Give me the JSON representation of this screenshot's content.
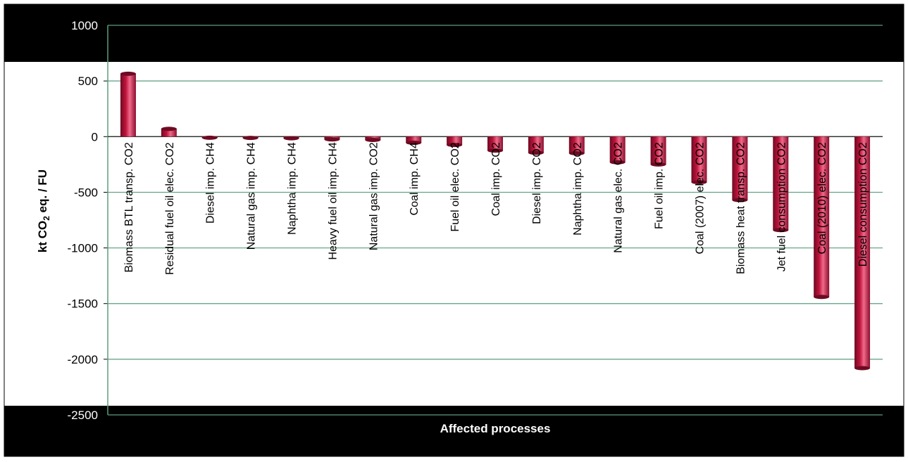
{
  "chart_data": {
    "type": "bar",
    "title": "",
    "xlabel": "Affected processes",
    "ylabel_main": "kt CO",
    "ylabel_sub": "2",
    "ylabel_rest": " eq. / FU",
    "ylim": [
      -2500,
      1000
    ],
    "yticks": [
      1000,
      500,
      0,
      -500,
      -1000,
      -1500,
      -2000,
      -2500
    ],
    "grid": true,
    "legend": "none",
    "colors": {
      "bar": "#c0143c",
      "bar_dark": "#6e0a22",
      "bar_light": "#f06a8a",
      "grid": "#5a9e7e",
      "band": "#000000"
    },
    "categories": [
      "Biomass BTL transp. CO2",
      "Residual fuel oil elec. CO2",
      "Diesel imp. CH4",
      "Natural gas imp. CH4",
      "Naphtha imp. CH4",
      "Heavy fuel oil imp. CH4",
      "Natural gas imp. CO2",
      "Coal imp. CH4",
      "Fuel oil elec. CO2",
      "Coal imp. CO2",
      "Diesel imp. CO2",
      "Naphtha imp. CO2",
      "Natural gas elec. CO2",
      "Fuel oil imp. CO2",
      "Coal (2007) elec. CO2",
      "Biomass heat transp. CO2",
      "Jet fuel consumption CO2",
      "Coal (2010) elec. CO2",
      "Diesel consumption CO2"
    ],
    "values": [
      565,
      70,
      -10,
      -12,
      -15,
      -25,
      -30,
      -55,
      -75,
      -125,
      -145,
      -150,
      -230,
      -250,
      -410,
      -570,
      -840,
      -1440,
      -2080
    ]
  }
}
